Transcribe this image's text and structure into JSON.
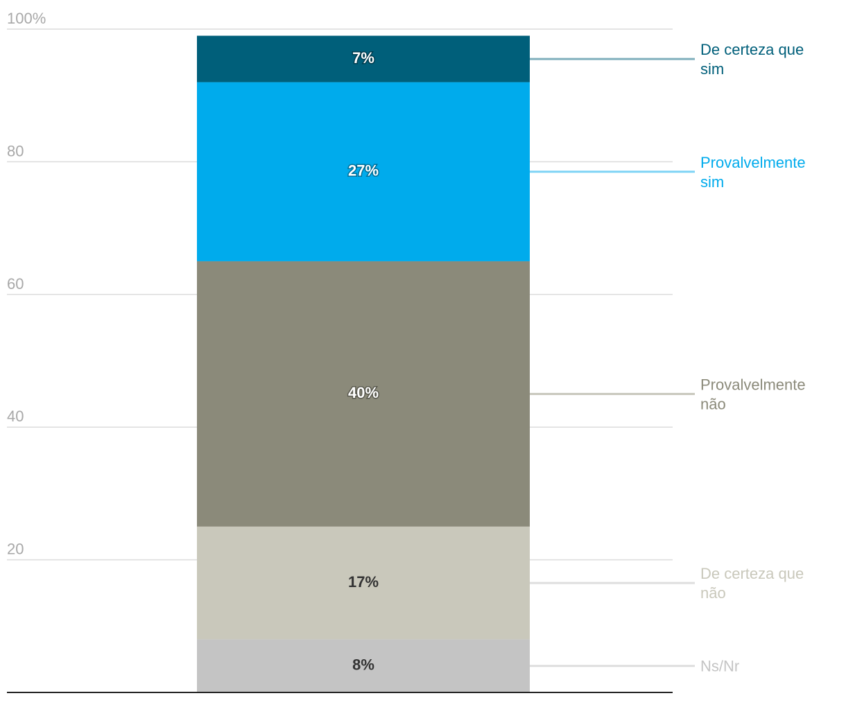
{
  "chart_data": {
    "type": "bar",
    "stacked": true,
    "title": "",
    "xlabel": "",
    "ylabel": "",
    "ylim": [
      0,
      100
    ],
    "y_ticks": [
      {
        "value": 100,
        "label": "100%"
      },
      {
        "value": 80,
        "label": "80"
      },
      {
        "value": 60,
        "label": "60"
      },
      {
        "value": 40,
        "label": "40"
      },
      {
        "value": 20,
        "label": "20"
      }
    ],
    "categories": [
      ""
    ],
    "series": [
      {
        "name": "Ns/Nr",
        "legend_lines": [
          "Ns/Nr"
        ],
        "value": 8,
        "label": "8%",
        "color": "#c4c4c4",
        "legend_color": "#c4c4c4",
        "leader_color": "#dedede",
        "label_color": "#333333"
      },
      {
        "name": "De certeza que não",
        "legend_lines": [
          "De certeza que",
          "não"
        ],
        "value": 17,
        "label": "17%",
        "color": "#c9c8bb",
        "legend_color": "#c9c8bb",
        "leader_color": "#dedede",
        "label_color": "#333333"
      },
      {
        "name": "Provalvelmente não",
        "legend_lines": [
          "Provalvelmente",
          "não"
        ],
        "value": 40,
        "label": "40%",
        "color": "#8b8a7a",
        "legend_color": "#8b8a7a",
        "leader_color": "#c7c6bb",
        "label_color": "#ffffff"
      },
      {
        "name": "Provalvelmente sim",
        "legend_lines": [
          "Provalvelmente",
          "sim"
        ],
        "value": 27,
        "label": "27%",
        "color": "#00abec",
        "legend_color": "#00abec",
        "leader_color": "#7fd4f5",
        "label_color": "#ffffff"
      },
      {
        "name": "De certeza que sim",
        "legend_lines": [
          "De certeza que",
          "sim"
        ],
        "value": 7,
        "label": "7%",
        "color": "#005f7a",
        "legend_color": "#005f7a",
        "leader_color": "#7fafbc",
        "label_color": "#ffffff"
      }
    ]
  }
}
